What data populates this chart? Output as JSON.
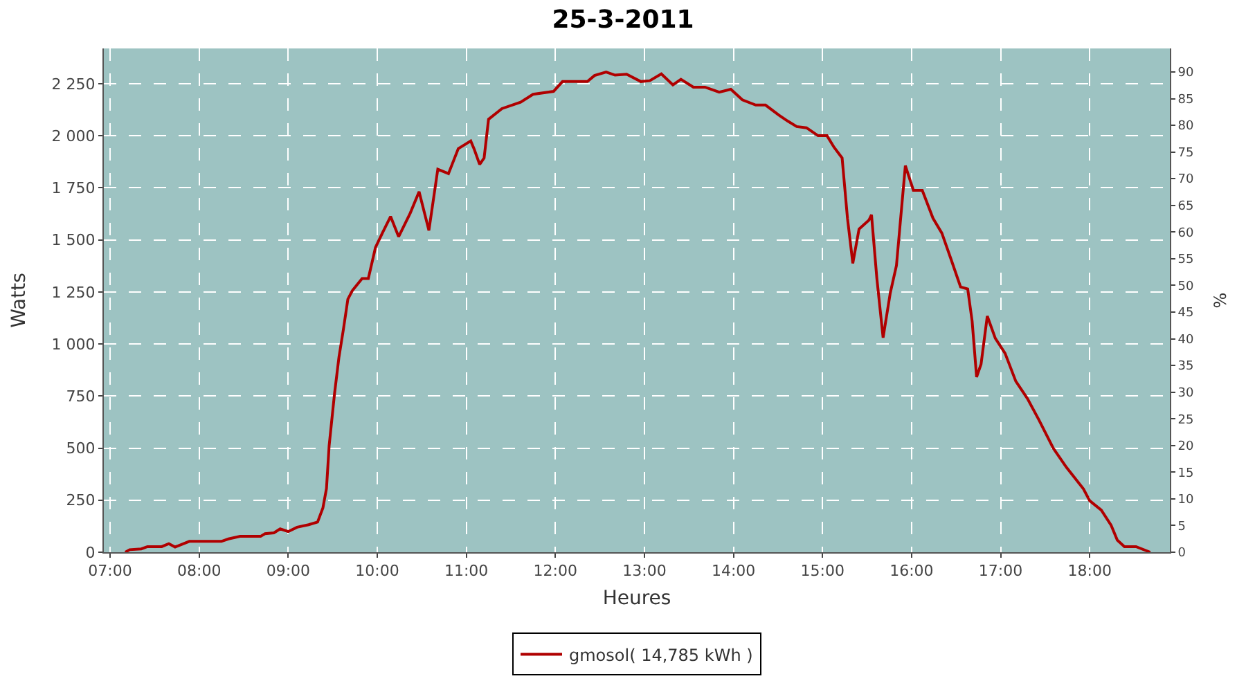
{
  "chart_data": {
    "type": "line",
    "title": "25-3-2011",
    "xlabel": "Heures",
    "ylabel": "Watts",
    "y2label": "%",
    "x": [
      7.17,
      7.22,
      7.35,
      7.42,
      7.58,
      7.66,
      7.73,
      7.89,
      8.25,
      8.33,
      8.46,
      8.69,
      8.74,
      8.84,
      8.91,
      9.0,
      9.1,
      9.23,
      9.33,
      9.39,
      9.43,
      9.46,
      9.52,
      9.57,
      9.62,
      9.67,
      9.72,
      9.83,
      9.9,
      9.98,
      10.06,
      10.15,
      10.24,
      10.37,
      10.47,
      10.58,
      10.68,
      10.8,
      10.91,
      11.05,
      11.09,
      11.15,
      11.2,
      11.25,
      11.4,
      11.61,
      11.75,
      11.98,
      12.08,
      12.36,
      12.44,
      12.57,
      12.67,
      12.8,
      12.96,
      13.06,
      13.19,
      13.32,
      13.41,
      13.55,
      13.68,
      13.84,
      13.97,
      14.1,
      14.25,
      14.36,
      14.51,
      14.61,
      14.71,
      14.82,
      14.95,
      15.05,
      15.13,
      15.22,
      15.28,
      15.34,
      15.41,
      15.52,
      15.55,
      15.61,
      15.68,
      15.76,
      15.83,
      15.93,
      16.02,
      16.12,
      16.24,
      16.34,
      16.45,
      16.55,
      16.63,
      16.68,
      16.73,
      16.78,
      16.85,
      16.94,
      17.05,
      17.17,
      17.3,
      17.43,
      17.59,
      17.74,
      17.93,
      18.0,
      18.13,
      18.24,
      18.31,
      18.39,
      18.52,
      18.68
    ],
    "series": [
      {
        "name": "gmosol( 14,785 kWh )",
        "color": "#b00000",
        "values": [
          0,
          12,
          16,
          27,
          27,
          41,
          25,
          52,
          52,
          64,
          76,
          76,
          89,
          93,
          112,
          99,
          120,
          132,
          145,
          213,
          306,
          512,
          760,
          936,
          1070,
          1215,
          1256,
          1314,
          1314,
          1463,
          1535,
          1612,
          1515,
          1628,
          1731,
          1545,
          1839,
          1818,
          1938,
          1975,
          1934,
          1862,
          1893,
          2079,
          2130,
          2161,
          2199,
          2213,
          2260,
          2260,
          2289,
          2306,
          2291,
          2295,
          2260,
          2264,
          2297,
          2244,
          2271,
          2233,
          2233,
          2209,
          2223,
          2172,
          2147,
          2147,
          2099,
          2070,
          2044,
          2038,
          2000,
          2000,
          1944,
          1893,
          1604,
          1387,
          1552,
          1594,
          1620,
          1315,
          1030,
          1243,
          1377,
          1856,
          1738,
          1738,
          1604,
          1532,
          1398,
          1274,
          1264,
          1109,
          841,
          903,
          1134,
          1027,
          955,
          821,
          738,
          635,
          500,
          407,
          304,
          247,
          202,
          130,
          58,
          27,
          27,
          0
        ]
      }
    ],
    "xlim": [
      6.93,
      18.9
    ],
    "xticks": [
      {
        "value": 7,
        "label": "07:00"
      },
      {
        "value": 8,
        "label": "08:00"
      },
      {
        "value": 9,
        "label": "09:00"
      },
      {
        "value": 10,
        "label": "10:00"
      },
      {
        "value": 11,
        "label": "11:00"
      },
      {
        "value": 12,
        "label": "12:00"
      },
      {
        "value": 13,
        "label": "13:00"
      },
      {
        "value": 14,
        "label": "14:00"
      },
      {
        "value": 15,
        "label": "15:00"
      },
      {
        "value": 16,
        "label": "16:00"
      },
      {
        "value": 17,
        "label": "17:00"
      },
      {
        "value": 18,
        "label": "18:00"
      }
    ],
    "ylim": [
      0,
      2419
    ],
    "yticks": [
      {
        "value": 0,
        "label": "0"
      },
      {
        "value": 250,
        "label": "250"
      },
      {
        "value": 500,
        "label": "500"
      },
      {
        "value": 750,
        "label": "750"
      },
      {
        "value": 1000,
        "label": "1 000"
      },
      {
        "value": 1250,
        "label": "1 250"
      },
      {
        "value": 1500,
        "label": "1 500"
      },
      {
        "value": 1750,
        "label": "1 750"
      },
      {
        "value": 2000,
        "label": "2 000"
      },
      {
        "value": 2250,
        "label": "2 250"
      }
    ],
    "y2lim": [
      0,
      94.4
    ],
    "y2ticks": [
      0,
      5,
      10,
      15,
      20,
      25,
      30,
      35,
      40,
      45,
      50,
      55,
      60,
      65,
      70,
      75,
      80,
      85,
      90
    ],
    "grid": true,
    "legend": "bottom",
    "marker": "none",
    "line_style": "solid"
  }
}
